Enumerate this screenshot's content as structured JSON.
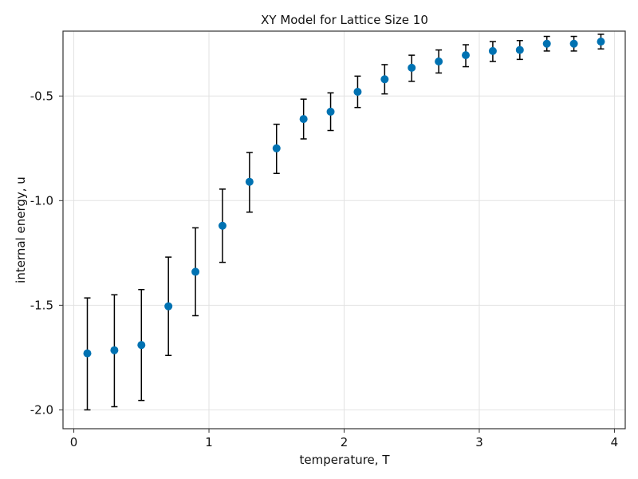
{
  "chart_data": {
    "type": "scatter",
    "title": "XY Model for Lattice Size 10",
    "xlabel": "temperature, T",
    "ylabel": "internal energy, u",
    "xlim": [
      -0.08,
      4.08
    ],
    "ylim": [
      -2.09,
      -0.19
    ],
    "xticks": [
      0,
      1,
      2,
      3,
      4
    ],
    "xtick_labels": [
      "0",
      "1",
      "2",
      "3",
      "4"
    ],
    "yticks": [
      -2.0,
      -1.5,
      -1.0,
      -0.5
    ],
    "ytick_labels": [
      "-2.0",
      "-1.5",
      "-1.0",
      "-0.5"
    ],
    "grid": true,
    "marker_color": "#0072B2",
    "error_color": "#000000",
    "series": [
      {
        "x": [
          0.1,
          0.3,
          0.5,
          0.7,
          0.9,
          1.1,
          1.3,
          1.5,
          1.7,
          1.9,
          2.1,
          2.3,
          2.5,
          2.7,
          2.9,
          3.1,
          3.3,
          3.5,
          3.7,
          3.9
        ],
        "y": [
          -1.73,
          -1.715,
          -1.69,
          -1.505,
          -1.34,
          -1.12,
          -0.91,
          -0.75,
          -0.61,
          -0.575,
          -0.48,
          -0.42,
          -0.365,
          -0.335,
          -0.305,
          -0.285,
          -0.28,
          -0.25,
          -0.25,
          -0.24
        ],
        "err_low": [
          -2.0,
          -1.985,
          -1.955,
          -1.74,
          -1.55,
          -1.295,
          -1.055,
          -0.87,
          -0.705,
          -0.665,
          -0.555,
          -0.49,
          -0.43,
          -0.39,
          -0.36,
          -0.335,
          -0.325,
          -0.285,
          -0.285,
          -0.275
        ],
        "err_high": [
          -1.465,
          -1.45,
          -1.425,
          -1.27,
          -1.13,
          -0.945,
          -0.77,
          -0.635,
          -0.515,
          -0.485,
          -0.405,
          -0.35,
          -0.305,
          -0.28,
          -0.255,
          -0.24,
          -0.235,
          -0.215,
          -0.215,
          -0.205
        ]
      }
    ]
  }
}
